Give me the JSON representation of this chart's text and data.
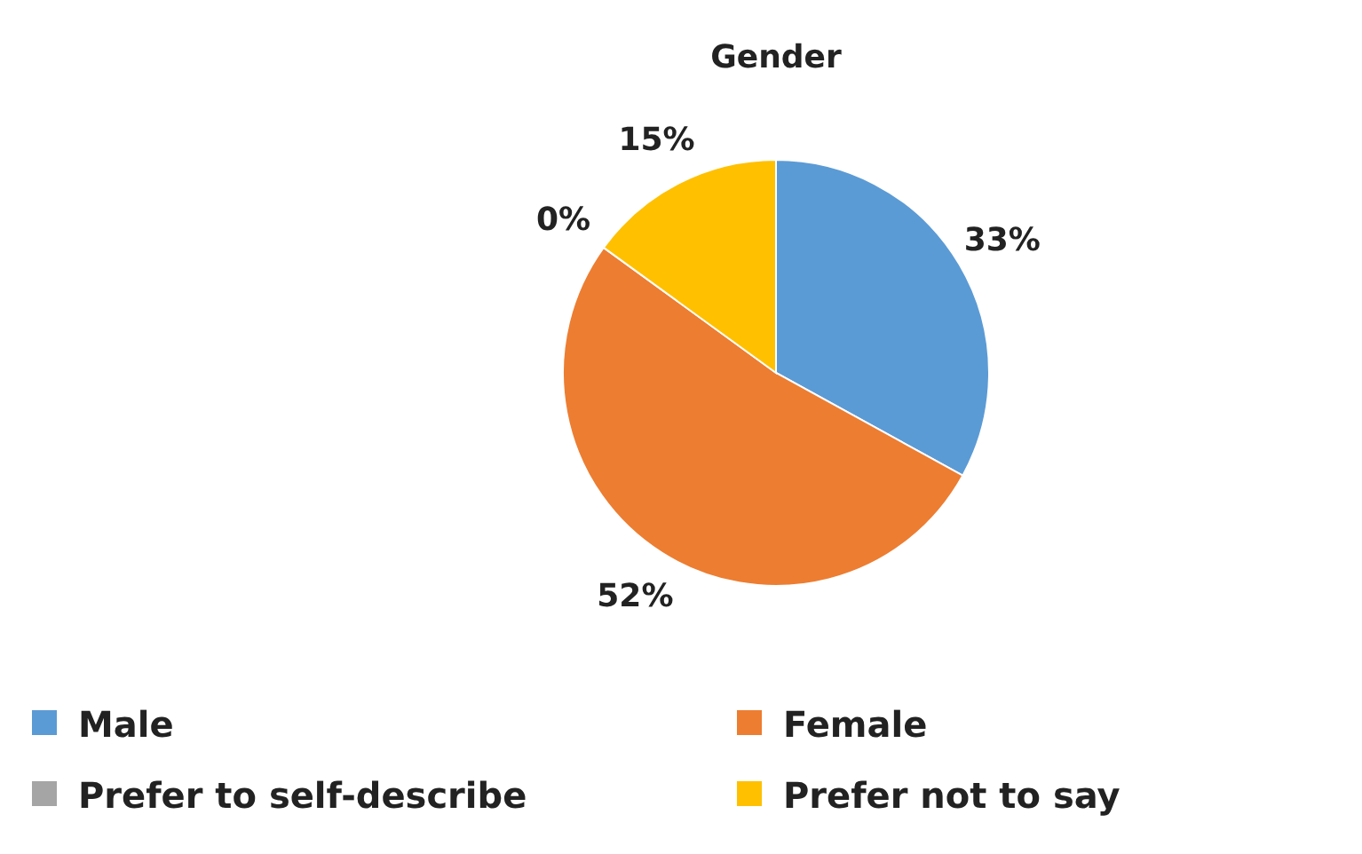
{
  "chart_data": {
    "type": "pie",
    "title": "Gender",
    "categories": [
      "Male",
      "Female",
      "Prefer to self-describe",
      "Prefer not to say"
    ],
    "values": [
      33,
      52,
      0,
      15
    ],
    "value_labels": [
      "33%",
      "52%",
      "0%",
      "15%"
    ],
    "colors": [
      "#5b9bd5",
      "#ed7d31",
      "#a5a5a5",
      "#ffc000"
    ],
    "legend": "bottom"
  }
}
